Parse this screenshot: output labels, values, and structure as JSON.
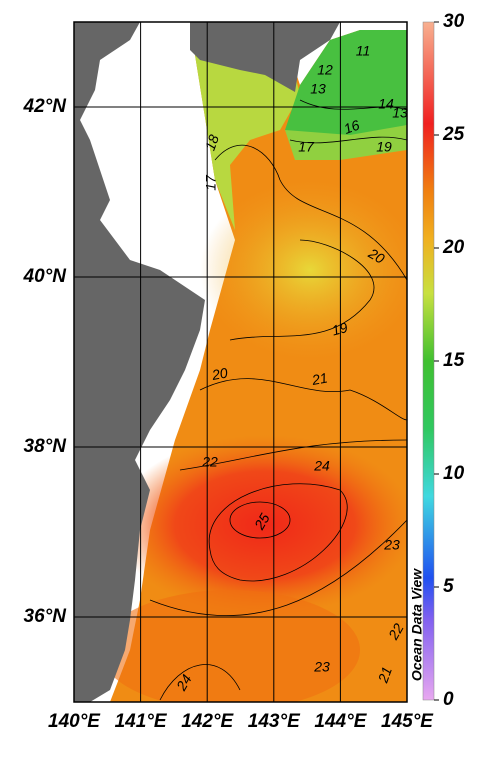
{
  "map": {
    "lon_range": [
      140,
      145
    ],
    "lat_range": [
      35,
      43
    ],
    "lon_ticks": [
      {
        "value": 140,
        "label": "140°E"
      },
      {
        "value": 141,
        "label": "141°E"
      },
      {
        "value": 142,
        "label": "142°E"
      },
      {
        "value": 143,
        "label": "143°E"
      },
      {
        "value": 144,
        "label": "144°E"
      },
      {
        "value": 145,
        "label": "145°E"
      }
    ],
    "lat_ticks": [
      {
        "value": 42,
        "label": "42°N"
      },
      {
        "value": 40,
        "label": "40°N"
      },
      {
        "value": 38,
        "label": "38°N"
      },
      {
        "value": 36,
        "label": "36°N"
      }
    ]
  },
  "colorbar": {
    "range": [
      0,
      30
    ],
    "ticks": [
      0,
      5,
      10,
      15,
      20,
      25,
      30
    ]
  },
  "contour_labels": [
    "11",
    "12",
    "13",
    "14",
    "13",
    "16",
    "17",
    "19",
    "18",
    "17",
    "20",
    "19",
    "20",
    "21",
    "22",
    "24",
    "25",
    "23",
    "22",
    "23",
    "24",
    "21"
  ],
  "watermark": "Ocean Data View"
}
